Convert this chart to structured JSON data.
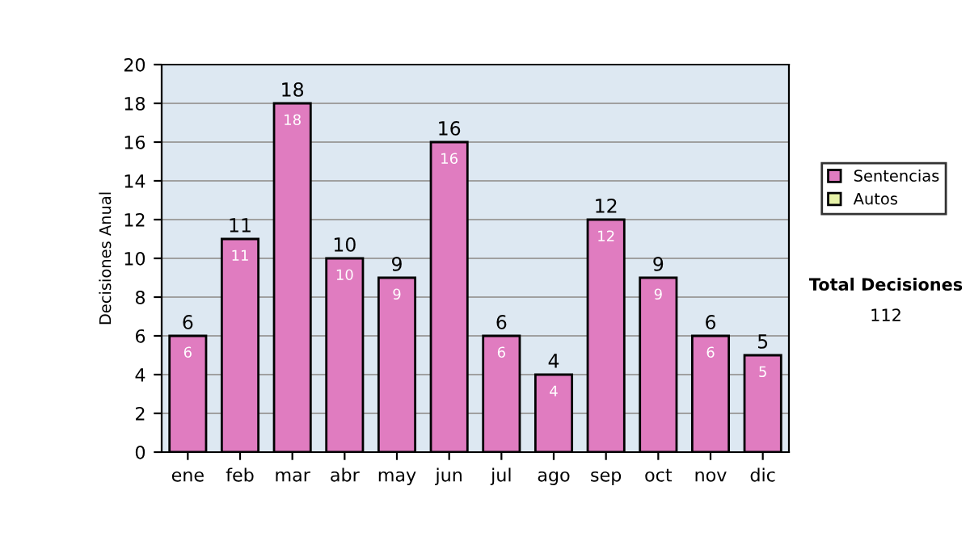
{
  "chart_data": {
    "type": "bar",
    "ylabel": "Decisiones Anual",
    "categories": [
      "ene",
      "feb",
      "mar",
      "abr",
      "may",
      "jun",
      "jul",
      "ago",
      "sep",
      "oct",
      "nov",
      "dic"
    ],
    "series": [
      {
        "name": "Sentencias",
        "color": "#e07cc0",
        "values": [
          6,
          11,
          18,
          10,
          9,
          16,
          6,
          4,
          12,
          9,
          6,
          5
        ],
        "value_labels": [
          "6",
          "11",
          "18",
          "10",
          "9",
          "16",
          "6",
          "4",
          "12",
          "9",
          "6",
          "5"
        ]
      },
      {
        "name": "Autos",
        "color": "#e6f2a8",
        "values": [
          null,
          null,
          null,
          null,
          null,
          null,
          null,
          null,
          null,
          null,
          null,
          null
        ]
      }
    ],
    "stacked": true,
    "totals": [
      "6",
      "11",
      "18",
      "10",
      "9",
      "16",
      "6",
      "4",
      "12",
      "9",
      "6",
      "5"
    ],
    "ylim": [
      0,
      20
    ],
    "yticks": [
      0,
      2,
      4,
      6,
      8,
      10,
      12,
      14,
      16,
      18,
      20
    ],
    "grid": "y",
    "legend": "right",
    "annotations": [
      "Total Decisiones",
      "112"
    ]
  }
}
